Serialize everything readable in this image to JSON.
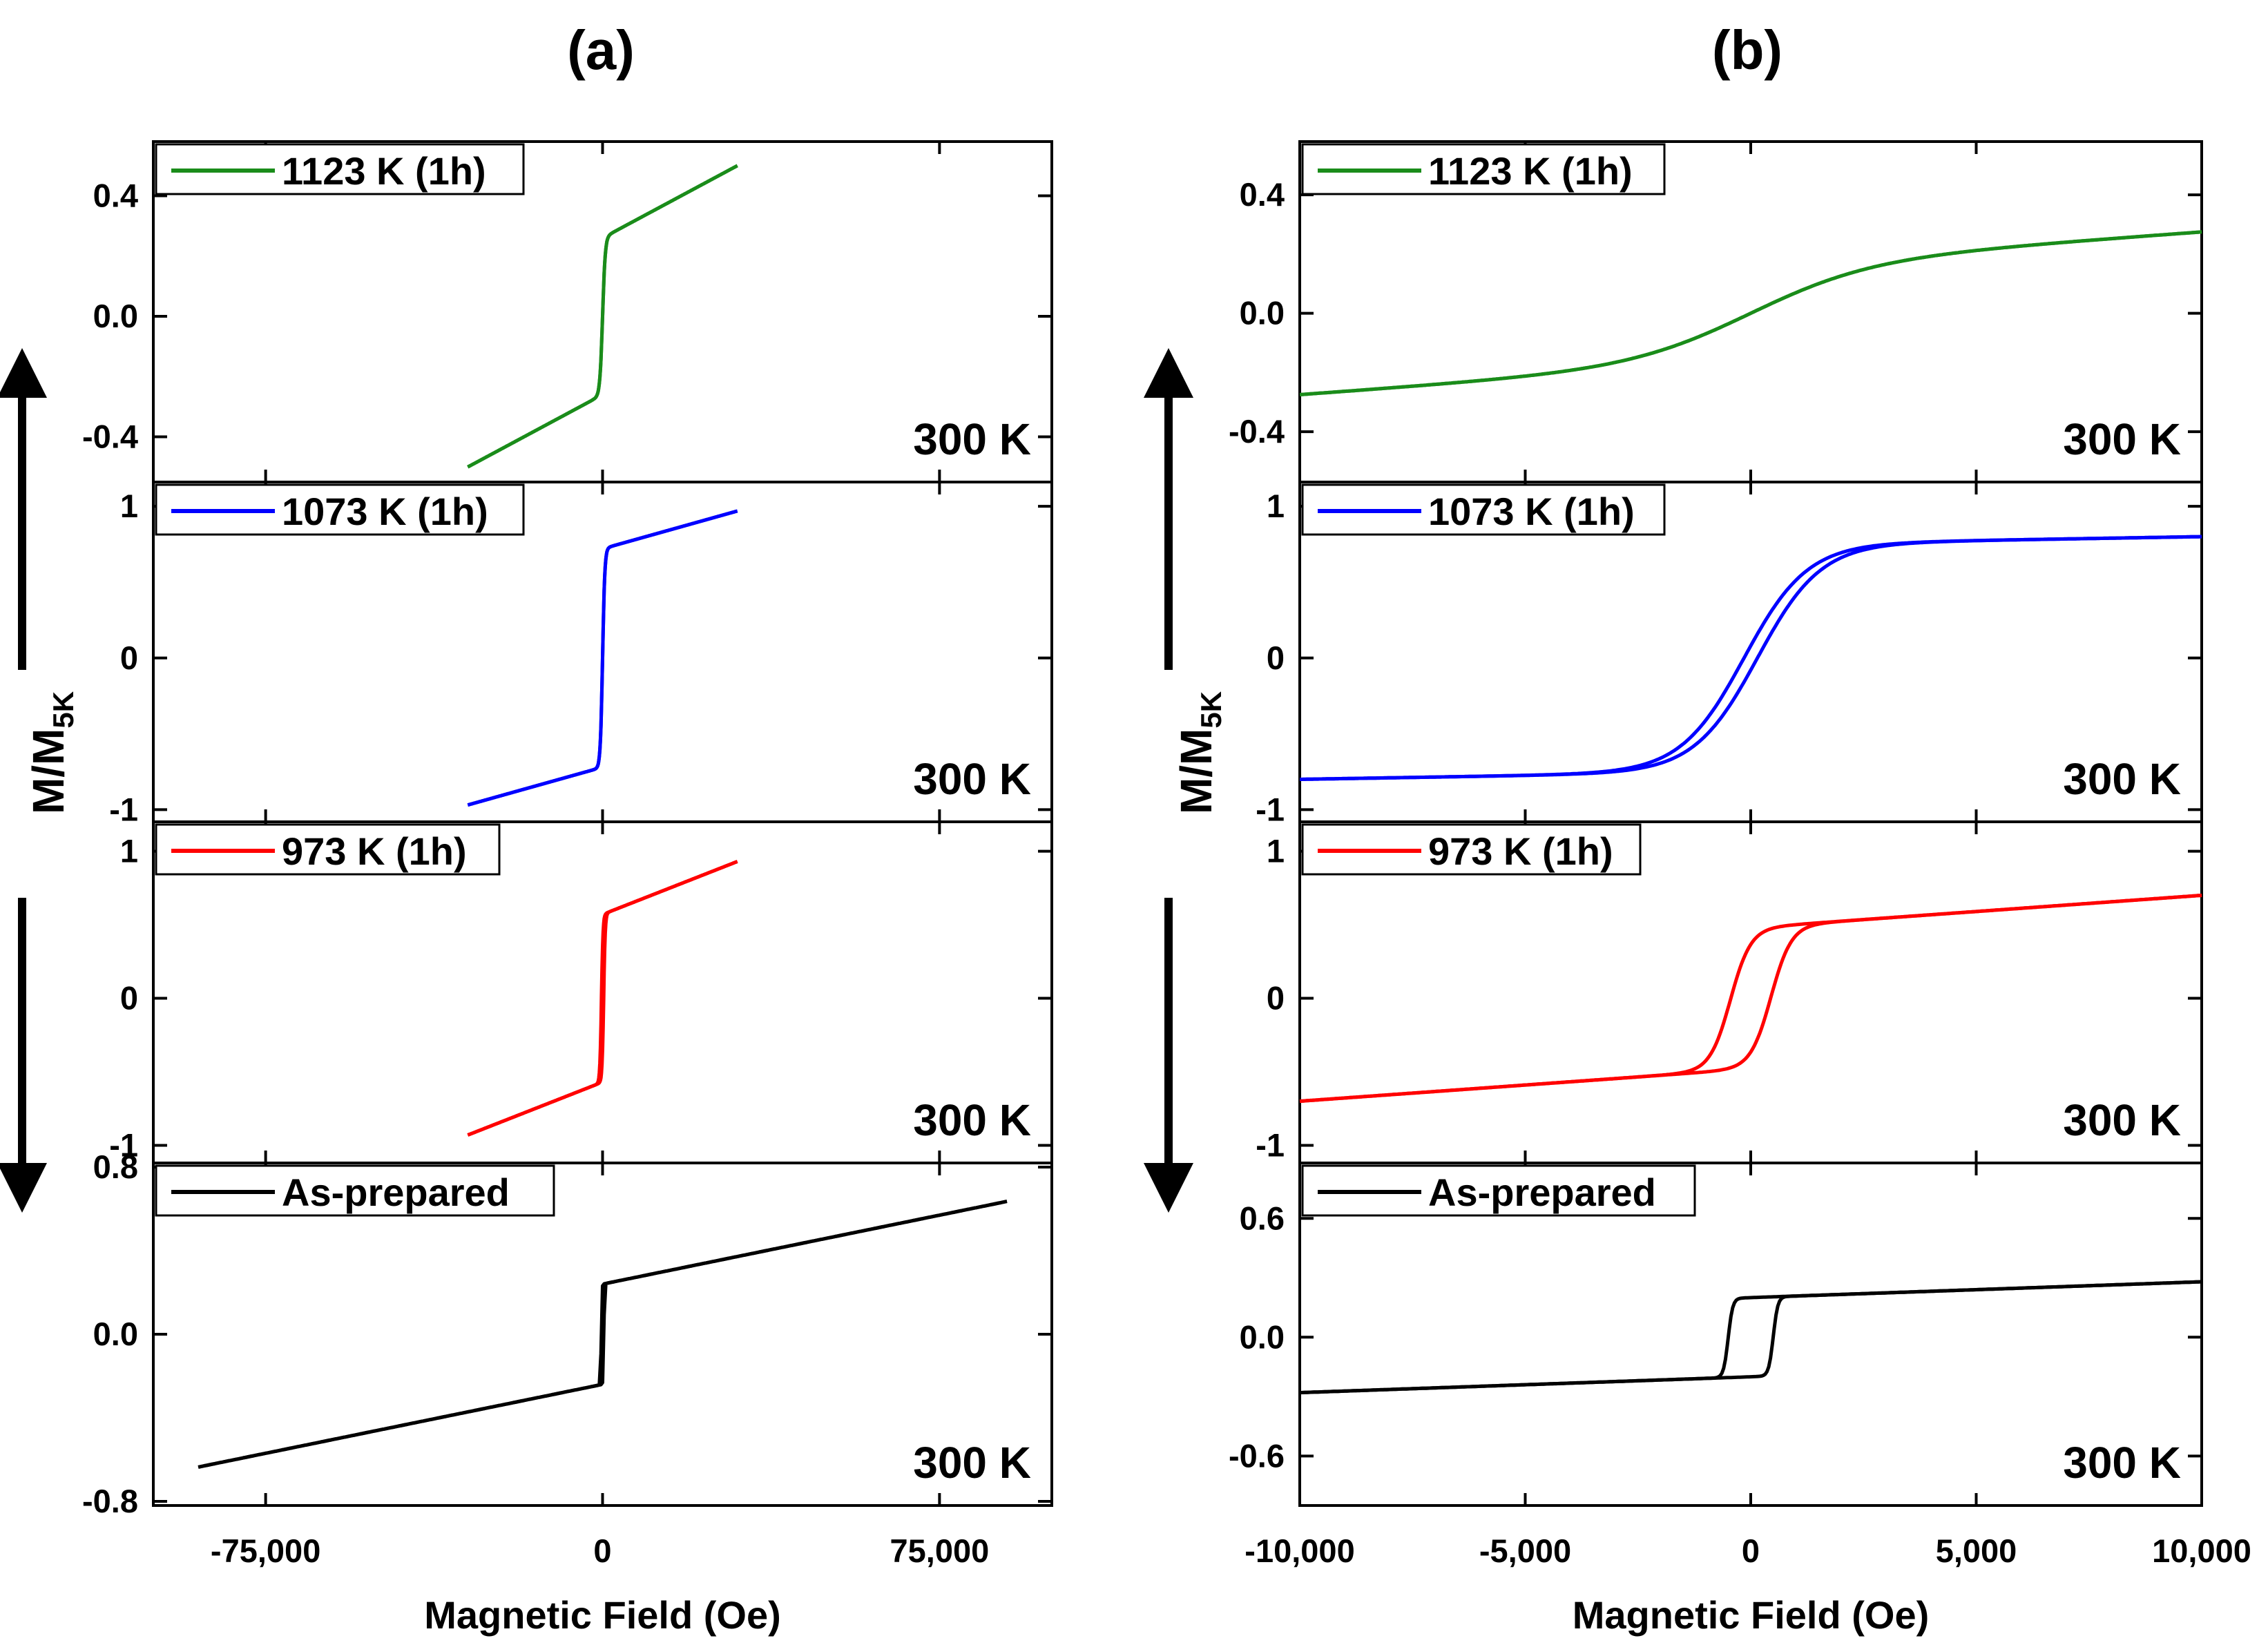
{
  "figure": {
    "panel_titles": [
      "(a)",
      "(b)"
    ],
    "colors": {
      "green": "#1a8c1a",
      "blue": "#0000ff",
      "red": "#ff0000",
      "black": "#000000"
    }
  },
  "chart_data": [
    {
      "type": "line",
      "title": "(a)",
      "xlabel": "Magnetic Field (Oe)",
      "ylabel": "M/M",
      "ylabel_sub": "5K",
      "xlim": [
        -100000,
        100000
      ],
      "x_ticks": [
        -75000,
        0,
        75000
      ],
      "x_tick_labels": [
        "-75,000",
        "0",
        "75,000"
      ],
      "subplots": [
        {
          "id": "a1",
          "legend": "1123 K (1h)",
          "color": "#1a8c1a",
          "temperature": "300 K",
          "ylim": [
            -0.55,
            0.58
          ],
          "y_ticks": [
            -0.4,
            0.0,
            0.4
          ],
          "y_tick_labels": [
            "-0.4",
            "0.0",
            "0.4"
          ],
          "curve": {
            "xmax": 30000,
            "ms": 0.26,
            "chi": 8e-06,
            "hc": 0,
            "k": 600
          }
        },
        {
          "id": "a2",
          "legend": "1073 K (1h)",
          "color": "#0000ff",
          "temperature": "300 K",
          "ylim": [
            -1.08,
            1.16
          ],
          "y_ticks": [
            -1,
            0,
            1
          ],
          "y_tick_labels": [
            "-1",
            "0",
            "1"
          ],
          "curve": {
            "xmax": 30000,
            "ms": 0.72,
            "chi": 8.3e-06,
            "hc": 0,
            "k": 500
          }
        },
        {
          "id": "a3",
          "legend": "973 K (1h)",
          "color": "#ff0000",
          "temperature": "300 K",
          "ylim": [
            -1.12,
            1.2
          ],
          "y_ticks": [
            -1,
            0,
            1
          ],
          "y_tick_labels": [
            "-1",
            "0",
            "1"
          ],
          "curve": {
            "xmax": 30000,
            "ms": 0.57,
            "chi": 1.2e-05,
            "hc": 250,
            "k": 350
          }
        },
        {
          "id": "a4",
          "legend": "As-prepared",
          "color": "#000000",
          "temperature": "300 K",
          "ylim": [
            -0.82,
            0.82
          ],
          "y_ticks": [
            -0.8,
            0.0,
            0.8
          ],
          "y_tick_labels": [
            "-0.8",
            "0.0",
            "0.8"
          ],
          "curve": {
            "xmax": 90000,
            "ms": 0.24,
            "chi": 4.4e-06,
            "hc": 300,
            "k": 150
          }
        }
      ]
    },
    {
      "type": "line",
      "title": "(b)",
      "xlabel": "Magnetic Field (Oe)",
      "ylabel": "M/M",
      "ylabel_sub": "5K",
      "xlim": [
        -10000,
        10000
      ],
      "x_ticks": [
        -10000,
        -5000,
        0,
        5000,
        10000
      ],
      "x_tick_labels": [
        "-10,000",
        "-5,000",
        "0",
        "5,000",
        "10,000"
      ],
      "subplots": [
        {
          "id": "b1",
          "legend": "1123 K (1h)",
          "color": "#1a8c1a",
          "temperature": "300 K",
          "ylim": [
            -0.57,
            0.58
          ],
          "y_ticks": [
            -0.4,
            0.0,
            0.4
          ],
          "y_tick_labels": [
            "-0.4",
            "0.0",
            "0.4"
          ],
          "curve": {
            "xmax": 10000,
            "ms": 0.165,
            "chi": 1.1e-05,
            "hc": 0,
            "k": 2700
          }
        },
        {
          "id": "b2",
          "legend": "1073 K (1h)",
          "color": "#0000ff",
          "temperature": "300 K",
          "ylim": [
            -1.08,
            1.16
          ],
          "y_ticks": [
            -1,
            0,
            1
          ],
          "y_tick_labels": [
            "-1",
            "0",
            "1"
          ],
          "curve": {
            "xmax": 10000,
            "ms": 0.75,
            "chi": 5e-06,
            "hc": 150,
            "k": 1400
          }
        },
        {
          "id": "b3",
          "legend": "973 K (1h)",
          "color": "#ff0000",
          "temperature": "300 K",
          "ylim": [
            -1.12,
            1.2
          ],
          "y_ticks": [
            -1,
            0,
            1
          ],
          "y_tick_labels": [
            "-1",
            "0",
            "1"
          ],
          "curve": {
            "xmax": 10000,
            "ms": 0.48,
            "chi": 2.2e-05,
            "hc": 450,
            "k": 450
          }
        },
        {
          "id": "b4",
          "legend": "As-prepared",
          "color": "#000000",
          "temperature": "300 K",
          "ylim": [
            -0.85,
            0.88
          ],
          "y_ticks": [
            -0.6,
            0.0,
            0.6
          ],
          "y_tick_labels": [
            "-0.6",
            "0.0",
            "0.6"
          ],
          "curve": {
            "xmax": 10000,
            "ms": 0.2,
            "chi": 8e-06,
            "hc": 500,
            "k": 100
          }
        }
      ]
    }
  ]
}
